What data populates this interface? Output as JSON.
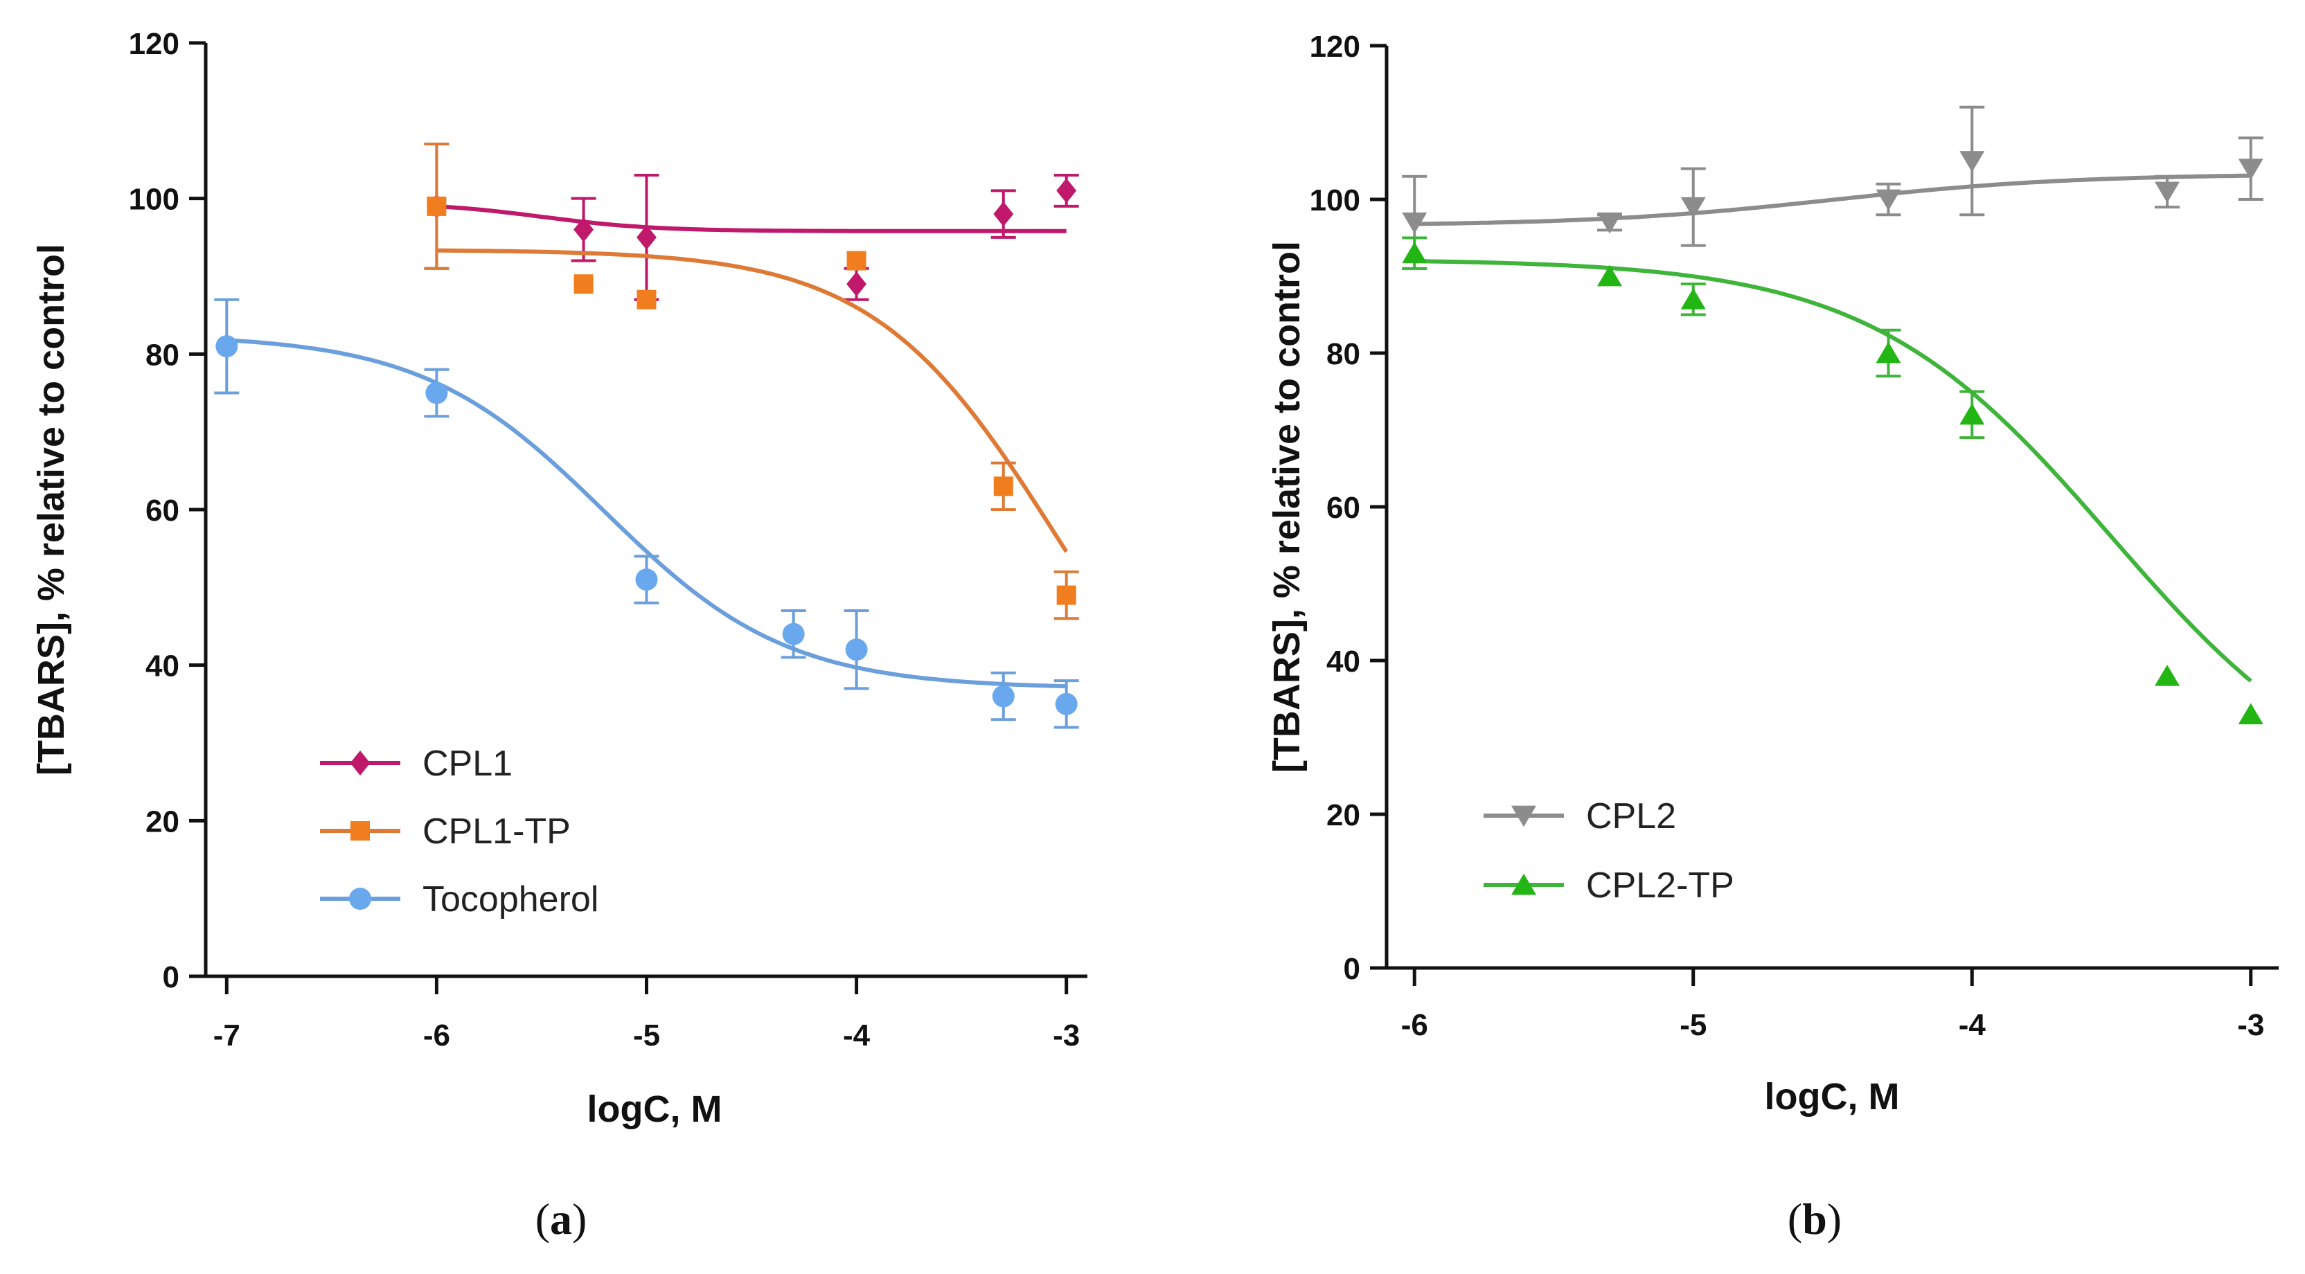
{
  "chart_data": [
    {
      "type": "line",
      "panel_label": "a",
      "xlabel": "logC, M",
      "ylabel": "[TBARS], % relative to control",
      "xlim": [
        -7.1,
        -2.9
      ],
      "ylim": [
        0,
        120
      ],
      "xticks": [
        -7,
        -6,
        -5,
        -4,
        -3
      ],
      "xtick_labels": [
        "-7",
        "-6",
        "-5",
        "-4",
        "-3"
      ],
      "yticks": [
        0,
        20,
        40,
        60,
        80,
        100,
        120
      ],
      "ytick_labels": [
        "0",
        "20",
        "40",
        "60",
        "80",
        "100",
        "120"
      ],
      "legend_position": "bottom-left",
      "series": [
        {
          "name": "CPL1",
          "color": "#c0186a",
          "marker": "diamond",
          "x": [
            -6,
            -5.3,
            -5,
            -4,
            -3.3,
            -3
          ],
          "y": [
            99,
            96,
            95,
            89,
            98,
            101
          ],
          "error": [
            8,
            4,
            8,
            2,
            3,
            2
          ],
          "fit": {
            "top": 99.5,
            "bottom": 95.8,
            "logEC50": -5.5,
            "hill": 1.6,
            "x_range": [
              -6,
              -3
            ]
          }
        },
        {
          "name": "CPL1-TP",
          "color": "#f07d1e",
          "curve_color": "#de7a35",
          "marker": "square",
          "x": [
            -6,
            -5.3,
            -5,
            -4,
            -3.3,
            -3
          ],
          "y": [
            99,
            89,
            87,
            92,
            63,
            49
          ],
          "error": [
            8,
            0,
            0,
            0,
            3,
            3
          ],
          "fit": {
            "top": 93.4,
            "bottom": 20,
            "logEC50": -3.05,
            "hill": 1.0,
            "x_range": [
              -6,
              -3
            ]
          }
        },
        {
          "name": "Tocopherol",
          "color": "#6aa8ee",
          "curve_color": "#6b9fdc",
          "marker": "circle",
          "x": [
            -7,
            -6,
            -5,
            -4.3,
            -4,
            -3.3,
            -3
          ],
          "y": [
            81,
            75,
            51,
            44,
            42,
            36,
            35
          ],
          "error": [
            6,
            3,
            3,
            3,
            5,
            3,
            3
          ],
          "fit": {
            "top": 82.5,
            "bottom": 37,
            "logEC50": -5.2,
            "hill": 1.0,
            "x_range": [
              -7,
              -3
            ]
          }
        }
      ]
    },
    {
      "type": "line",
      "panel_label": "b",
      "xlabel": "logC, M",
      "ylabel": "[TBARS], % relative to control",
      "xlim": [
        -6.1,
        -2.9
      ],
      "ylim": [
        0,
        120
      ],
      "xticks": [
        -6,
        -5,
        -4,
        -3
      ],
      "xtick_labels": [
        "-6",
        "-5",
        "-4",
        "-3"
      ],
      "yticks": [
        0,
        20,
        40,
        60,
        80,
        100,
        120
      ],
      "ytick_labels": [
        "0",
        "20",
        "40",
        "60",
        "80",
        "100",
        "120"
      ],
      "legend_position": "bottom-left",
      "series": [
        {
          "name": "CPL2",
          "color": "#8c8c8c",
          "marker": "triangle-down",
          "x": [
            -6,
            -5.3,
            -5,
            -4.3,
            -4,
            -3.3,
            -3
          ],
          "y": [
            97,
            97,
            99,
            100,
            105,
            101,
            104
          ],
          "error": [
            6,
            1,
            5,
            2,
            7,
            2,
            4
          ],
          "fit": {
            "top": 96.6,
            "bottom": 103.3,
            "logEC50": -4.5,
            "hill": 1.0,
            "x_range": [
              -6,
              -3
            ]
          }
        },
        {
          "name": "CPL2-TP",
          "color": "#22b514",
          "curve_color": "#3fb43a",
          "marker": "triangle-up",
          "x": [
            -6,
            -5.3,
            -5,
            -4.3,
            -4,
            -3.3,
            -3
          ],
          "y": [
            93,
            90,
            87,
            80,
            72,
            38,
            33
          ],
          "error": [
            2,
            0,
            2,
            3,
            3,
            0,
            0
          ],
          "fit": {
            "top": 92.2,
            "bottom": 20,
            "logEC50": -3.5,
            "hill": 1.0,
            "x_range": [
              -6,
              -3
            ]
          }
        }
      ]
    }
  ]
}
